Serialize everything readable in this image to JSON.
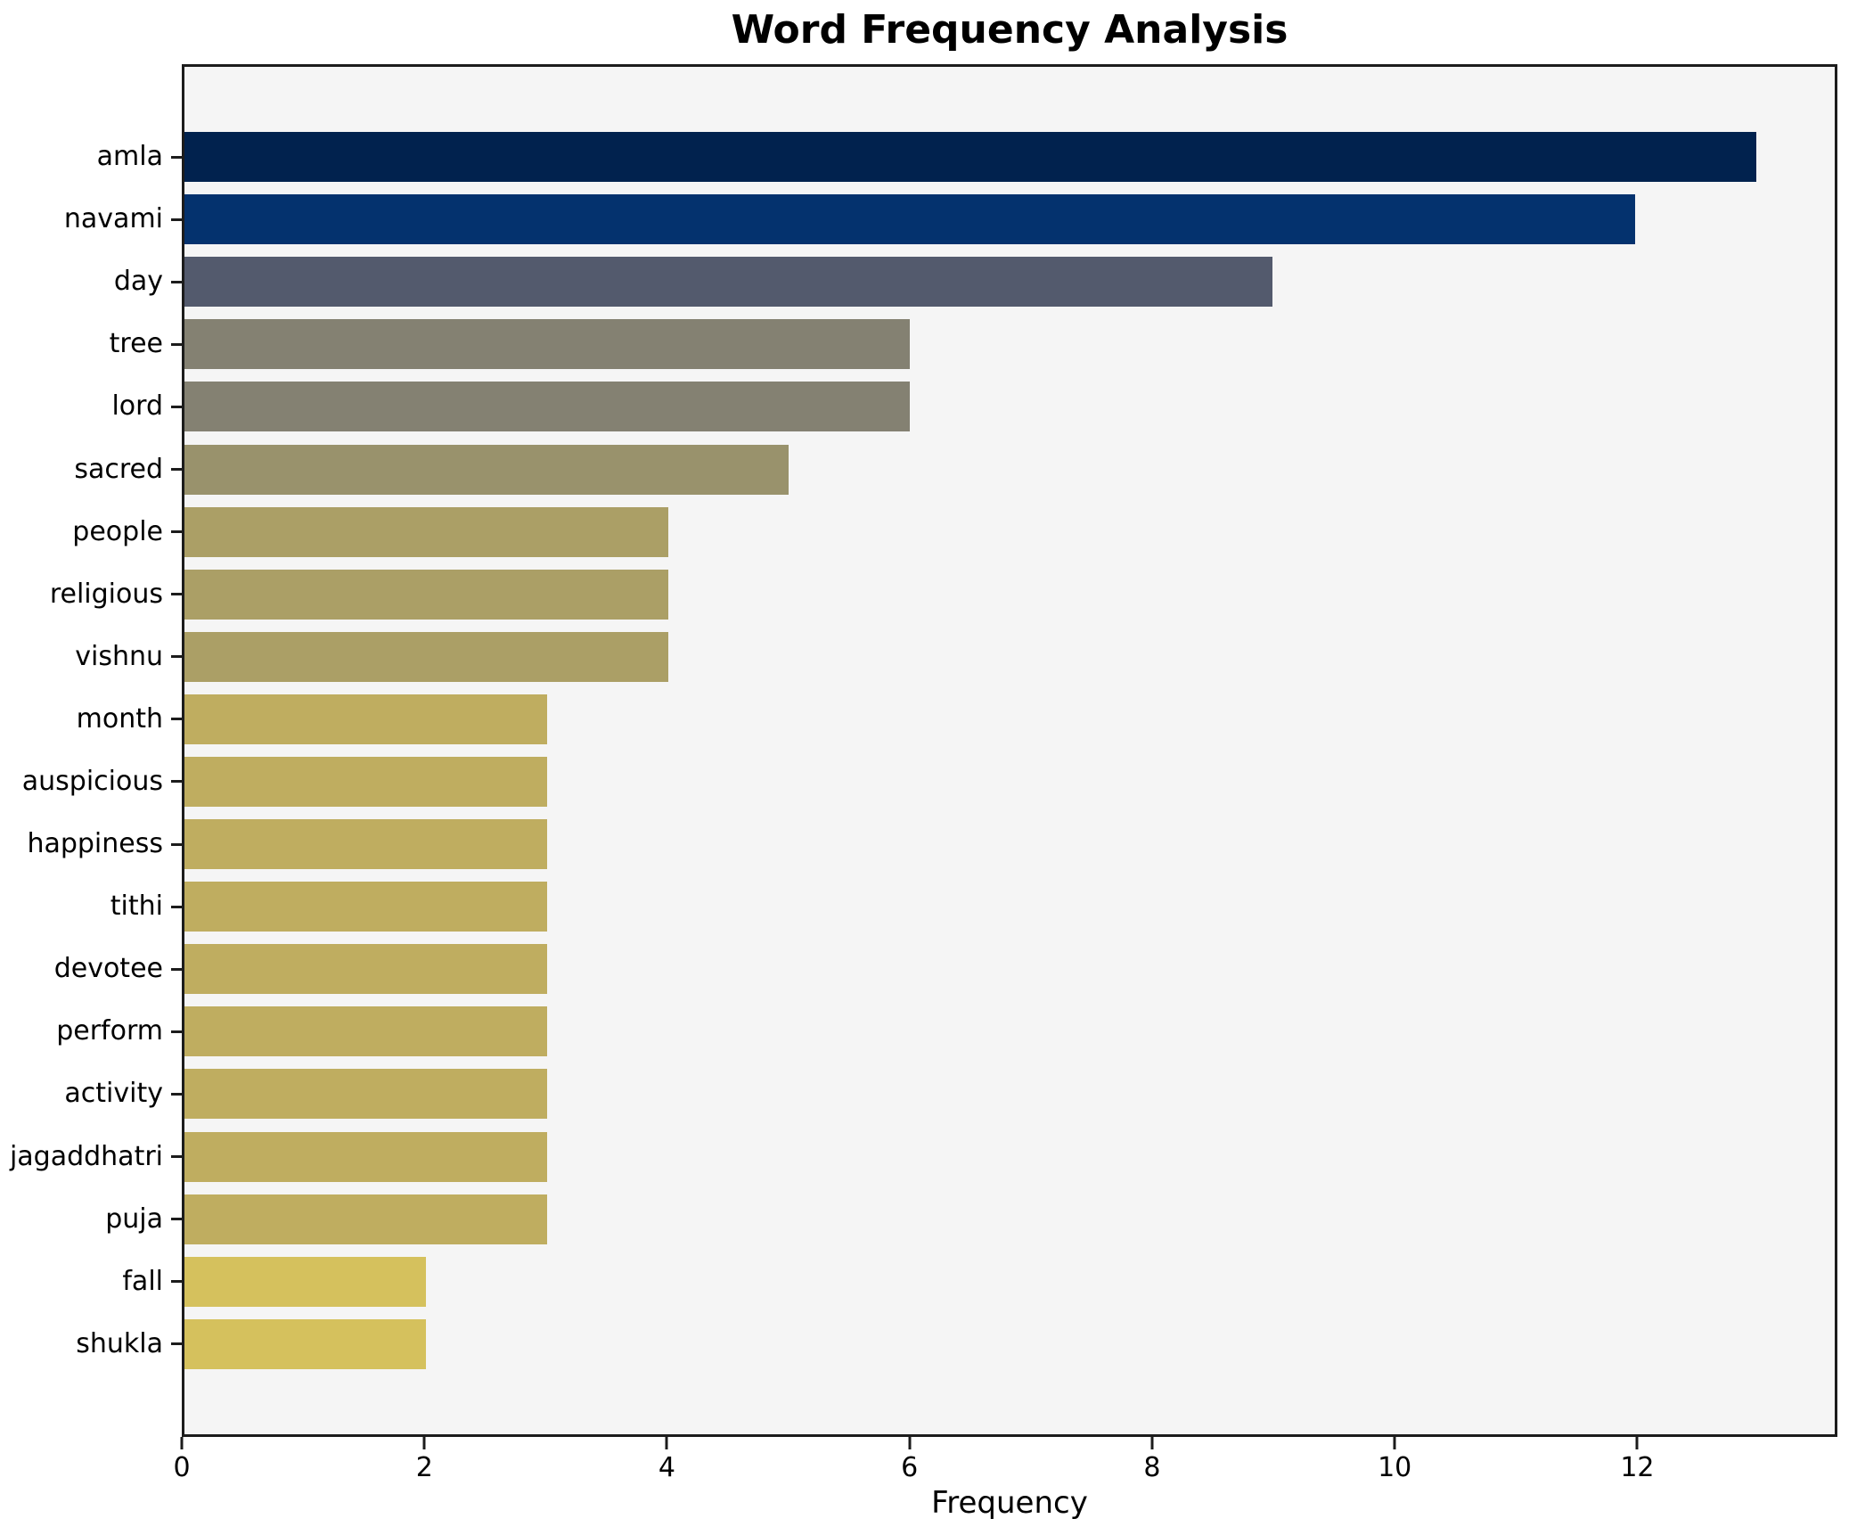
{
  "chart_data": {
    "type": "bar",
    "orientation": "horizontal",
    "title": "Word Frequency Analysis",
    "xlabel": "Frequency",
    "ylabel": "",
    "categories": [
      "amla",
      "navami",
      "day",
      "tree",
      "lord",
      "sacred",
      "people",
      "religious",
      "vishnu",
      "month",
      "auspicious",
      "happiness",
      "tithi",
      "devotee",
      "perform",
      "activity",
      "jagaddhatri",
      "puja",
      "fall",
      "shukla"
    ],
    "values": [
      13,
      12,
      9,
      6,
      6,
      5,
      4,
      4,
      4,
      3,
      3,
      3,
      3,
      3,
      3,
      3,
      3,
      3,
      2,
      2
    ],
    "bar_colors": [
      "#01224e",
      "#04326e",
      "#535a6d",
      "#848172",
      "#848172",
      "#99926c",
      "#ab9f66",
      "#ab9f66",
      "#ab9f66",
      "#bfad60",
      "#bfad60",
      "#bfad60",
      "#bfad60",
      "#bfad60",
      "#bfad60",
      "#bfad60",
      "#bfad60",
      "#bfad60",
      "#d5c15d",
      "#d5c15d"
    ],
    "xlim": [
      0,
      13.65
    ],
    "x_ticks": [
      0,
      2,
      4,
      6,
      8,
      10,
      12
    ],
    "grid": false,
    "legend": null,
    "plot_background": "#f5f5f5",
    "spine_color": "#1c1c1c",
    "text_color": "#000000"
  }
}
